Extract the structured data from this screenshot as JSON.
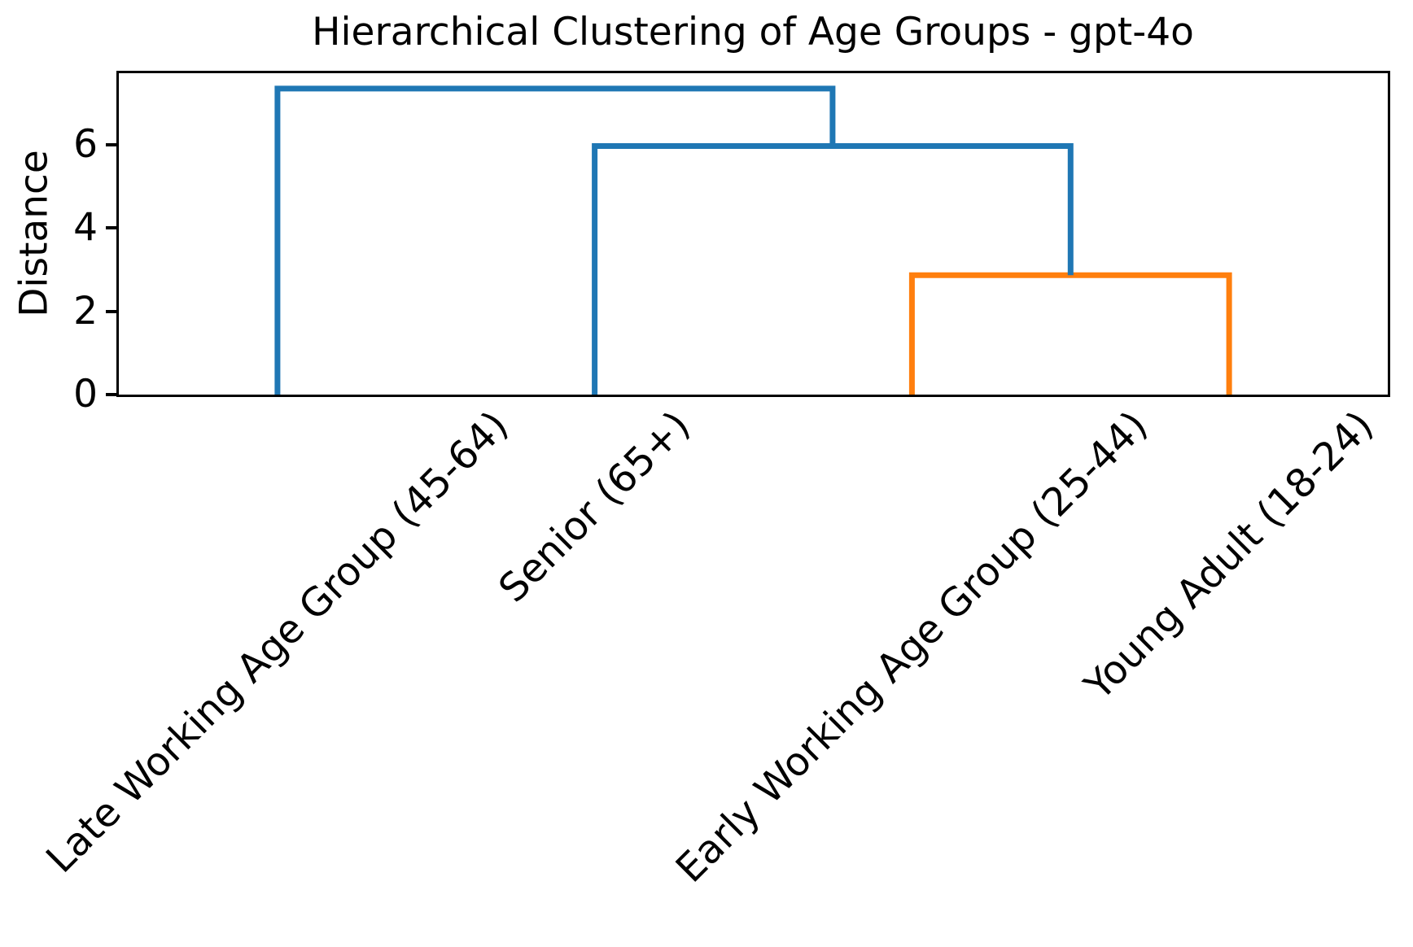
{
  "chart_data": {
    "type": "dendrogram",
    "title": "Hierarchical Clustering of Age Groups - gpt-4o",
    "ylabel": "Distance",
    "yticks": [
      0,
      2,
      4,
      6
    ],
    "ylim": [
      0,
      7.72
    ],
    "xlim": [
      0,
      40
    ],
    "grid": false,
    "legend": null,
    "leaves": [
      {
        "label": "Late Working Age Group (45-64)",
        "position": 5
      },
      {
        "label": "Senior (65+)",
        "position": 15
      },
      {
        "label": "Early Working Age Group (25-44)",
        "position": 25
      },
      {
        "label": "Young Adult (18-24)",
        "position": 35
      }
    ],
    "links": [
      {
        "x": [
          25,
          25,
          35,
          35
        ],
        "y": [
          0,
          2.87,
          2.87,
          0
        ],
        "color": "#ff7f0e"
      },
      {
        "x": [
          15,
          15,
          30,
          30
        ],
        "y": [
          0,
          5.97,
          5.97,
          2.87
        ],
        "color": "#1f77b4"
      },
      {
        "x": [
          5,
          5,
          22.5,
          22.5
        ],
        "y": [
          0,
          7.35,
          7.35,
          5.97
        ],
        "color": "#1f77b4"
      }
    ],
    "merges": [
      {
        "clusters": [
          "Early Working Age Group (25-44)",
          "Young Adult (18-24)"
        ],
        "distance": 2.87,
        "color": "#ff7f0e"
      },
      {
        "clusters": [
          "Senior (65+)",
          "Early Working Age Group (25-44) + Young Adult (18-24)"
        ],
        "distance": 5.97,
        "color": "#1f77b4"
      },
      {
        "clusters": [
          "Late Working Age Group (45-64)",
          "all other groups"
        ],
        "distance": 7.35,
        "color": "#1f77b4"
      }
    ],
    "colors": {
      "above_threshold_link": "#1f77b4",
      "cluster_link": "#ff7f0e",
      "axes": "#000000",
      "background": "#ffffff"
    }
  }
}
